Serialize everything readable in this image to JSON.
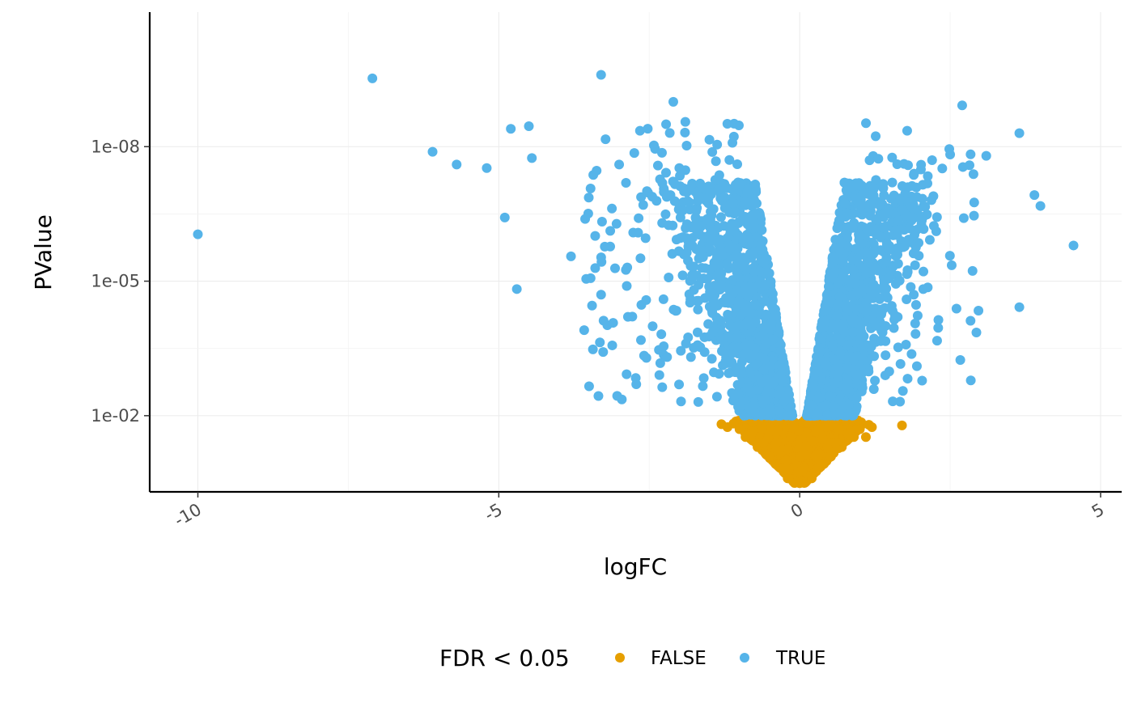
{
  "chart_data": {
    "type": "scatter",
    "xlabel": "logFC",
    "ylabel": "PValue",
    "x_ticks": [
      -10,
      -5,
      0,
      5
    ],
    "y_scale": "log10-reversed",
    "y_ticks": [
      {
        "value": 1e-08,
        "label": "1e-08"
      },
      {
        "value": 1e-05,
        "label": "1e-05"
      },
      {
        "value": 0.01,
        "label": "1e-02"
      }
    ],
    "xlim": [
      -10.8,
      5.35
    ],
    "ylim": [
      1e-11,
      0.5
    ],
    "grid": true,
    "legend": {
      "title": "FDR < 0.05",
      "placement": "bottom",
      "entries": [
        {
          "label": "FALSE",
          "color": "#E69F00"
        },
        {
          "label": "TRUE",
          "color": "#56B4E9"
        }
      ]
    },
    "series": [
      {
        "name": "FALSE",
        "color": "#E69F00",
        "points": [
          [
            1.7,
            0.0165
          ],
          [
            -1.3,
            0.0155
          ],
          [
            1.1,
            0.03
          ],
          [
            -1.0,
            0.02
          ],
          [
            -0.9,
            0.03
          ],
          [
            -0.7,
            0.05
          ],
          [
            -0.5,
            0.08
          ],
          [
            -0.3,
            0.15
          ],
          [
            0.3,
            0.15
          ],
          [
            0.5,
            0.08
          ],
          [
            0.7,
            0.05
          ],
          [
            0.9,
            0.03
          ],
          [
            1.0,
            0.02
          ],
          [
            -1.1,
            0.015
          ],
          [
            1.15,
            0.016
          ],
          [
            -0.2,
            0.25
          ],
          [
            0.2,
            0.25
          ],
          [
            -0.05,
            0.3
          ],
          [
            0.05,
            0.3
          ],
          [
            0.0,
            0.32
          ],
          [
            -0.6,
            0.04
          ],
          [
            0.6,
            0.04
          ],
          [
            -0.8,
            0.025
          ],
          [
            0.8,
            0.025
          ],
          [
            -0.4,
            0.12
          ],
          [
            0.4,
            0.12
          ],
          [
            -1.2,
            0.018
          ],
          [
            1.2,
            0.018
          ]
        ]
      },
      {
        "name": "TRUE",
        "color": "#56B4E9",
        "points": [
          [
            -10.0,
            9e-07
          ],
          [
            -7.1,
            3e-10
          ],
          [
            -3.3,
            2.5e-10
          ],
          [
            2.7,
            1.2e-09
          ],
          [
            3.65,
            5e-09
          ],
          [
            -6.1,
            1.3e-08
          ],
          [
            -5.7,
            2.5e-08
          ],
          [
            -5.2,
            3e-08
          ],
          [
            -4.8,
            4e-09
          ],
          [
            -4.5,
            3.5e-09
          ],
          [
            -4.45,
            1.8e-08
          ],
          [
            -4.9,
            3.8e-07
          ],
          [
            -4.7,
            1.5e-05
          ],
          [
            -3.8,
            2.8e-06
          ],
          [
            -3.45,
            3.5e-05
          ],
          [
            -3.3,
            2e-05
          ],
          [
            -3.1,
            8.5e-05
          ],
          [
            -3.0,
            2.5e-08
          ],
          [
            3.1,
            1.6e-08
          ],
          [
            3.9,
            1.2e-07
          ],
          [
            4.0,
            2.1e-07
          ],
          [
            4.55,
            1.6e-06
          ],
          [
            3.65,
            3.8e-05
          ],
          [
            2.2,
            2e-08
          ],
          [
            2.5,
            1.5e-08
          ],
          [
            1.9,
            4e-08
          ],
          [
            1.8,
            2.6e-08
          ],
          [
            -2.0,
            3e-08
          ],
          [
            -1.9,
            2.8e-09
          ],
          [
            -2.1,
            1e-09
          ],
          [
            -1.5,
            7e-09
          ],
          [
            -2.6,
            2e-07
          ]
        ]
      }
    ]
  }
}
